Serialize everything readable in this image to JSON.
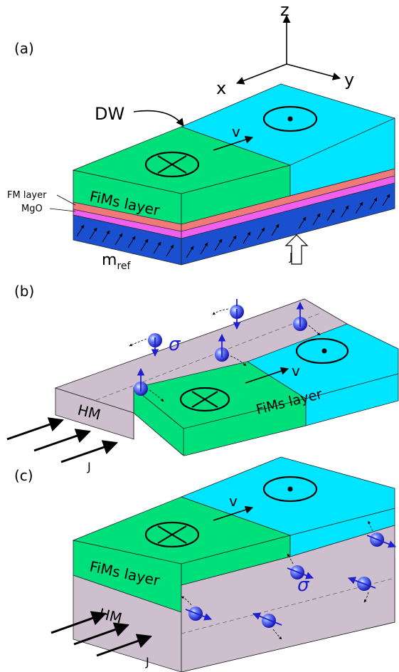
{
  "panels": {
    "a": {
      "label": "(a)",
      "axes": {
        "z": "z",
        "x": "x",
        "y": "y"
      },
      "dw_label": "DW",
      "velocity_label": "v",
      "fims_label": "FiMs layer",
      "fm_label": "FM layer",
      "mgo_label": "MgO",
      "mref_main": "m",
      "mref_sub": "ref",
      "current_label": "J"
    },
    "b": {
      "label": "(b)",
      "sigma_label": "σ",
      "velocity_label": "v",
      "hm_label": "HM",
      "fims_label": "FiMs layer",
      "current_label": "J"
    },
    "c": {
      "label": "(c)",
      "velocity_label": "v",
      "fims_label": "FiMs layer",
      "hm_label": "HM",
      "sigma_label": "σ",
      "current_label": "J"
    }
  },
  "colors": {
    "green": "#00e07a",
    "cyan": "#00e5ff",
    "hm_gray": "#cdbfcd",
    "pink": "#f07a7a",
    "magenta": "#f060ee",
    "blue": "#1a50d0",
    "spin_blue": "#2020d0"
  }
}
